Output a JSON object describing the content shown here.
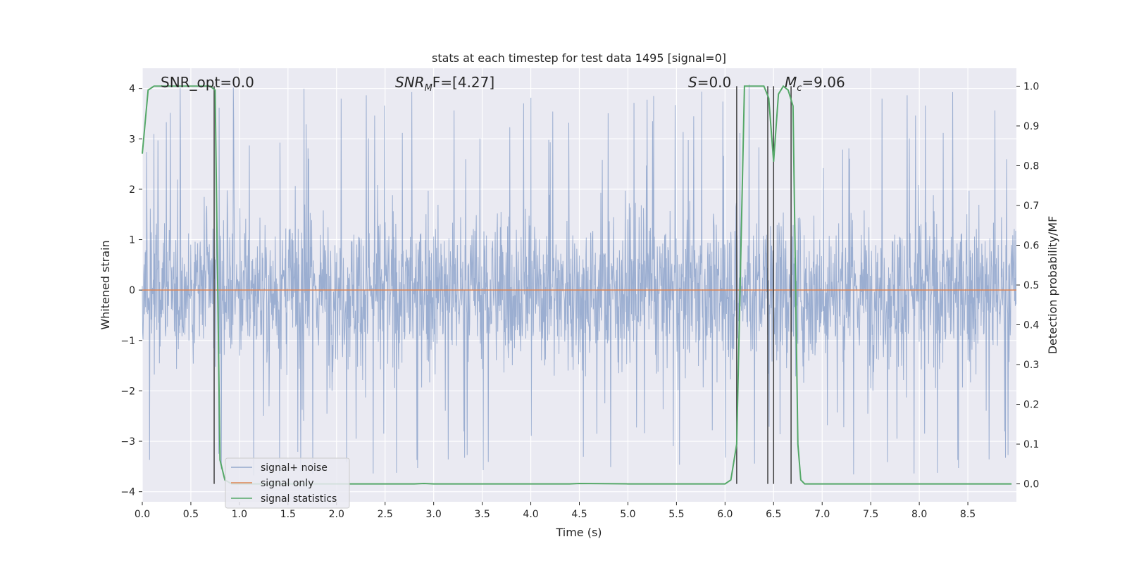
{
  "chart_data": {
    "type": "line",
    "title": "stats at each timestep for test data 1495 [signal=0]",
    "xlabel": "Time (s)",
    "ylabel": "Whitened strain",
    "y2label": "Detection probability/MF",
    "xlim": [
      0,
      9.0
    ],
    "ylim": [
      -4.2,
      4.4
    ],
    "y2lim": [
      -0.045,
      1.045
    ],
    "x_ticks": [
      0.0,
      0.5,
      1.0,
      1.5,
      2.0,
      2.5,
      3.0,
      3.5,
      4.0,
      4.5,
      5.0,
      5.5,
      6.0,
      6.5,
      7.0,
      7.5,
      8.0,
      8.5
    ],
    "x_tick_labels": [
      "0.0",
      "0.5",
      "1.0",
      "1.5",
      "2.0",
      "2.5",
      "3.0",
      "3.5",
      "4.0",
      "4.5",
      "5.0",
      "5.5",
      "6.0",
      "6.5",
      "7.0",
      "7.5",
      "8.0",
      "8.5"
    ],
    "y_ticks": [
      4,
      3,
      2,
      1,
      0,
      -1,
      -2,
      -3,
      -4
    ],
    "y_tick_labels": [
      "4",
      "3",
      "2",
      "1",
      "0",
      "−1",
      "−2",
      "−3",
      "−4"
    ],
    "y2_ticks": [
      1.0,
      0.9,
      0.8,
      0.7,
      0.6,
      0.5,
      0.4,
      0.3,
      0.2,
      0.1,
      0.0
    ],
    "y2_tick_labels": [
      "1.0",
      "0.9",
      "0.8",
      "0.7",
      "0.6",
      "0.5",
      "0.4",
      "0.3",
      "0.2",
      "0.1",
      "0.0"
    ],
    "grid": true,
    "legend_position": "lower-left",
    "annotations": {
      "snr_opt": "SNR_opt=0.0",
      "snr_mf_name": "SNR",
      "snr_mf_sub": "M",
      "snr_mf_tail": "F=[4.27]",
      "s_name": "S",
      "s_tail": "=0.0",
      "mc_name": "M",
      "mc_sub": "c",
      "mc_tail": "=9.06"
    },
    "series": [
      {
        "name": "signal+ noise",
        "color": "#4c72b0",
        "kind": "noise",
        "noise_core_std": 0.75,
        "noise_upper_typical": 2.4,
        "noise_lower_typical": -2.3,
        "noise_upper_extreme": 4.1,
        "noise_lower_extreme": -3.7
      },
      {
        "name": "signal only",
        "color": "#dd8452",
        "x": [
          0.0,
          9.0
        ],
        "y": [
          0.0,
          0.0
        ]
      },
      {
        "name": "signal statistics",
        "color": "#55a868",
        "axis": "right",
        "x": [
          0.0,
          0.06,
          0.12,
          0.2,
          0.5,
          0.7,
          0.75,
          0.8,
          0.85,
          0.92,
          1.0,
          2.0,
          2.8,
          2.9,
          3.0,
          4.0,
          4.4,
          4.5,
          5.0,
          6.0,
          6.06,
          6.12,
          6.2,
          6.4,
          6.45,
          6.5,
          6.55,
          6.6,
          6.65,
          6.7,
          6.75,
          6.78,
          6.82,
          7.0,
          8.0,
          8.95
        ],
        "y": [
          0.83,
          0.99,
          1.0,
          1.0,
          1.0,
          1.0,
          0.99,
          0.06,
          0.01,
          0.0,
          0.0,
          0.0,
          0.0,
          0.001,
          0.0,
          0.0,
          0.0,
          0.001,
          0.0,
          0.0,
          0.01,
          0.1,
          1.0,
          1.0,
          0.97,
          0.81,
          0.98,
          1.0,
          0.99,
          0.95,
          0.1,
          0.01,
          0.0,
          0.0,
          0.0,
          0.0
        ]
      }
    ],
    "vertical_markers": {
      "color": "#404040",
      "x": [
        0.74,
        6.12,
        6.44,
        6.5,
        6.68
      ]
    }
  }
}
